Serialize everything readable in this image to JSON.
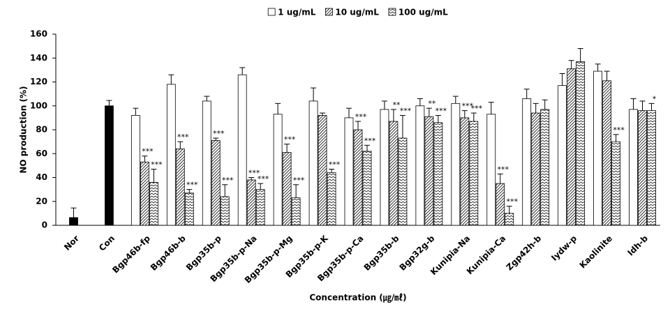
{
  "chart_data": {
    "type": "bar",
    "y_label": "NO production (%)",
    "x_label": "Concentration  (㎍/㎖)",
    "categories": [
      "Nor",
      "Con",
      "Bgp46b-fp",
      "Bgp46b-b",
      "Bgp35b-p",
      "Bgp35b-p-Na",
      "Bgp35b-p-Mg",
      "Bgp35b-p-K",
      "Bgp35b-p-Ca",
      "Bgp35b-b",
      "Bgp32g-b",
      "Kunipia-Na",
      "Kunipia-Ca",
      "Zgp42h-b",
      "Iydw-p",
      "Kaolinite",
      "Idh-b"
    ],
    "series": [
      {
        "color": "#000000",
        "pattern": "solid",
        "values": [
          6.5,
          100,
          null,
          null,
          null,
          null,
          null,
          null,
          null,
          null,
          null,
          null,
          null,
          null,
          null,
          null,
          null
        ],
        "errors": [
          8,
          4.5,
          null,
          null,
          null,
          null,
          null,
          null,
          null,
          null,
          null,
          null,
          null,
          null,
          null,
          null,
          null
        ]
      },
      {
        "name": "1 ug/mL",
        "color": "#ffffff",
        "pattern": "solid",
        "values": [
          null,
          null,
          92,
          118,
          104,
          126,
          93,
          104,
          90,
          97,
          100,
          102,
          93,
          106,
          117,
          129,
          97
        ],
        "errors": [
          null,
          null,
          6,
          8,
          4,
          6,
          9,
          11,
          8,
          7,
          6,
          6,
          10,
          8,
          10,
          6,
          9
        ]
      },
      {
        "name": "10 ug/mL",
        "color": "#ffffff",
        "pattern": "diagonal",
        "values": [
          null,
          null,
          53,
          64,
          71,
          38,
          61,
          92,
          80,
          87,
          91,
          90,
          35,
          94,
          131,
          121,
          96
        ],
        "errors": [
          null,
          null,
          5,
          6,
          2,
          2,
          7,
          2,
          7,
          10,
          7,
          6,
          8,
          8,
          7,
          8,
          8
        ],
        "annotations": [
          null,
          null,
          "***",
          "***",
          "***",
          "***",
          "***",
          null,
          "***",
          "**",
          "**",
          "***",
          "***",
          null,
          null,
          null,
          null
        ]
      },
      {
        "name": "100 ug/mL",
        "color": "#ffffff",
        "pattern": "zigzag",
        "values": [
          null,
          null,
          36,
          27,
          24,
          30,
          23,
          44,
          62,
          73,
          86,
          87,
          10,
          97,
          137,
          70,
          96
        ],
        "errors": [
          null,
          null,
          11,
          3,
          10,
          5,
          11,
          3,
          5,
          19,
          6,
          7,
          6,
          8,
          11,
          6,
          6
        ],
        "annotations": [
          null,
          null,
          "***",
          "***",
          "***",
          "***",
          "***",
          "***",
          "***",
          "***",
          "***",
          "***",
          "***",
          null,
          null,
          "***",
          "*"
        ]
      }
    ],
    "ylim": [
      0,
      160
    ],
    "yticks": [
      0,
      20,
      40,
      60,
      80,
      100,
      120,
      140,
      160
    ],
    "grid": false,
    "legend": "top"
  }
}
